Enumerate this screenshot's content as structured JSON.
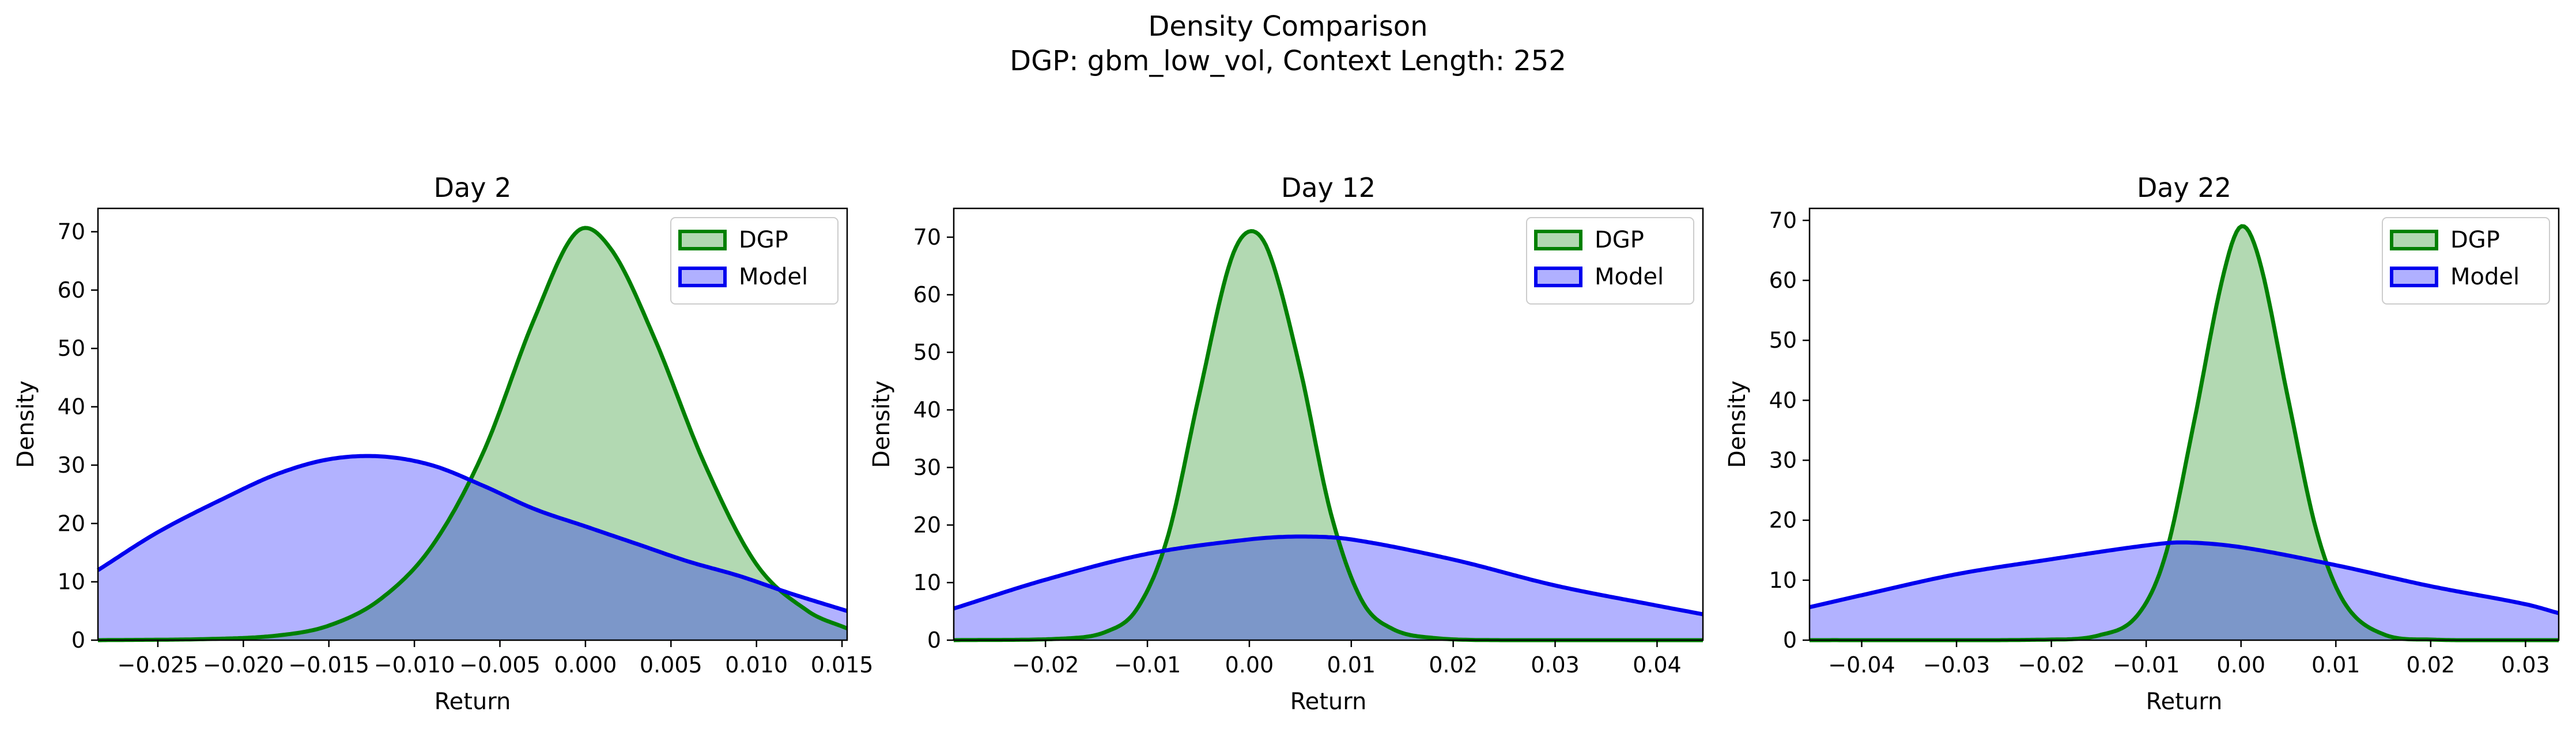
{
  "figure": {
    "title_line1": "Density Comparison",
    "title_line2": "DGP: gbm_low_vol, Context Length: 252"
  },
  "colors": {
    "dgp_line": "#008000",
    "dgp_fill": "#b2d8b2",
    "model_line": "#0000ee",
    "model_fill": "#b0b0ff",
    "overlap_fill": "#7f9ac8"
  },
  "chart_data": [
    {
      "type": "area",
      "title": "Day 2",
      "xlabel": "Return",
      "ylabel": "Density",
      "xlim": [
        -0.0285,
        0.0153
      ],
      "ylim": [
        0,
        74
      ],
      "xticks": [
        -0.025,
        -0.02,
        -0.015,
        -0.01,
        -0.005,
        0.0,
        0.005,
        0.01,
        0.015
      ],
      "xtick_labels": [
        "−0.025",
        "−0.020",
        "−0.015",
        "−0.010",
        "−0.005",
        "0.000",
        "0.005",
        "0.010",
        "0.015"
      ],
      "yticks": [
        0,
        10,
        20,
        30,
        40,
        50,
        60,
        70
      ],
      "legend": "top-right",
      "series": [
        {
          "name": "DGP",
          "x": [
            -0.0285,
            -0.022,
            -0.018,
            -0.015,
            -0.012,
            -0.009,
            -0.006,
            -0.003,
            -0.0005,
            0.0015,
            0.004,
            0.007,
            0.01,
            0.013,
            0.0153
          ],
          "y": [
            0.0,
            0.2,
            0.8,
            2.5,
            7.0,
            16.0,
            32.0,
            55.0,
            70.0,
            67.0,
            52.0,
            30.0,
            13.0,
            5.0,
            2.0
          ]
        },
        {
          "name": "Model",
          "x": [
            -0.0285,
            -0.025,
            -0.021,
            -0.018,
            -0.015,
            -0.012,
            -0.009,
            -0.006,
            -0.003,
            0.0,
            0.003,
            0.006,
            0.009,
            0.012,
            0.0153
          ],
          "y": [
            12.0,
            18.5,
            24.5,
            28.5,
            31.0,
            31.5,
            30.0,
            26.5,
            22.5,
            19.5,
            16.5,
            13.5,
            11.0,
            8.0,
            5.0
          ]
        }
      ]
    },
    {
      "type": "area",
      "title": "Day 12",
      "xlabel": "Return",
      "ylabel": "Density",
      "xlim": [
        -0.029,
        0.0445
      ],
      "ylim": [
        0,
        75
      ],
      "xticks": [
        -0.02,
        -0.01,
        0.0,
        0.01,
        0.02,
        0.03,
        0.04
      ],
      "xtick_labels": [
        "−0.02",
        "−0.01",
        "0.00",
        "0.01",
        "0.02",
        "0.03",
        "0.04"
      ],
      "yticks": [
        0,
        10,
        20,
        30,
        40,
        50,
        60,
        70
      ],
      "legend": "top-right",
      "series": [
        {
          "name": "DGP",
          "x": [
            -0.029,
            -0.018,
            -0.014,
            -0.011,
            -0.008,
            -0.005,
            -0.002,
            0.0,
            0.002,
            0.005,
            0.008,
            0.011,
            0.014,
            0.018,
            0.025,
            0.0445
          ],
          "y": [
            0.0,
            0.3,
            1.5,
            5.5,
            18.0,
            42.0,
            65.0,
            71.0,
            67.0,
            47.0,
            22.0,
            7.0,
            2.0,
            0.4,
            0.0,
            0.0
          ]
        },
        {
          "name": "Model",
          "x": [
            -0.029,
            -0.02,
            -0.01,
            0.0,
            0.005,
            0.01,
            0.02,
            0.03,
            0.04,
            0.0445
          ],
          "y": [
            5.5,
            10.5,
            15.0,
            17.5,
            18.0,
            17.5,
            14.0,
            9.5,
            6.0,
            4.5
          ]
        }
      ]
    },
    {
      "type": "area",
      "title": "Day 22",
      "xlabel": "Return",
      "ylabel": "Density",
      "xlim": [
        -0.0455,
        0.0335
      ],
      "ylim": [
        0,
        72
      ],
      "xticks": [
        -0.04,
        -0.03,
        -0.02,
        -0.01,
        0.0,
        0.01,
        0.02,
        0.03
      ],
      "xtick_labels": [
        "−0.04",
        "−0.03",
        "−0.02",
        "−0.01",
        "0.00",
        "0.01",
        "0.02",
        "0.03"
      ],
      "yticks": [
        0,
        10,
        20,
        30,
        40,
        50,
        60,
        70
      ],
      "legend": "top-right",
      "series": [
        {
          "name": "DGP",
          "x": [
            -0.0455,
            -0.02,
            -0.015,
            -0.011,
            -0.008,
            -0.005,
            -0.002,
            0.0,
            0.002,
            0.005,
            0.008,
            0.011,
            0.015,
            0.02,
            0.0335
          ],
          "y": [
            0.0,
            0.1,
            0.8,
            4.0,
            14.0,
            36.0,
            60.0,
            69.0,
            63.0,
            40.0,
            18.0,
            6.0,
            1.0,
            0.1,
            0.0
          ]
        },
        {
          "name": "Model",
          "x": [
            -0.0455,
            -0.04,
            -0.03,
            -0.02,
            -0.01,
            -0.006,
            0.0,
            0.01,
            0.02,
            0.03,
            0.0335
          ],
          "y": [
            5.5,
            7.5,
            11.0,
            13.5,
            15.8,
            16.3,
            15.5,
            12.5,
            9.0,
            6.0,
            4.5
          ]
        }
      ]
    }
  ]
}
